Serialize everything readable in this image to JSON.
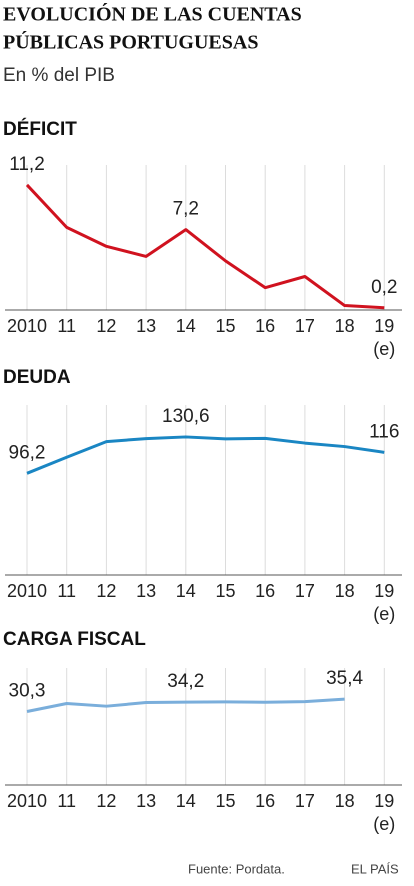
{
  "title": [
    "EVOLUCIÓN DE LAS CUENTAS",
    "PÚBLICAS PORTUGUESAS"
  ],
  "subtitle": "En % del PIB",
  "source": "Fuente: Pordata.",
  "credit": "EL PAÍS",
  "chart_data": [
    {
      "type": "line",
      "title": "DÉFICIT",
      "categories": [
        "2010",
        "11",
        "12",
        "13",
        "14",
        "15",
        "16",
        "17",
        "18",
        "19"
      ],
      "annotation": "(e)",
      "series": [
        {
          "name": "Déficit",
          "color": "#d0121f",
          "values": [
            11.2,
            7.4,
            5.7,
            4.8,
            7.2,
            4.4,
            2.0,
            3.0,
            0.4,
            0.2
          ],
          "value_labels": [
            "11,2",
            null,
            null,
            null,
            "7,2",
            null,
            null,
            null,
            null,
            "0,2"
          ]
        }
      ],
      "ylim": [
        0,
        12
      ]
    },
    {
      "type": "line",
      "title": "DEUDA",
      "categories": [
        "2010",
        "11",
        "12",
        "13",
        "14",
        "15",
        "16",
        "17",
        "18",
        "19"
      ],
      "annotation": "(e)",
      "series": [
        {
          "name": "Deuda",
          "color": "#1a86c3",
          "values": [
            96.2,
            111.4,
            126.2,
            129.0,
            130.6,
            128.8,
            129.2,
            124.8,
            121.5,
            116
          ],
          "value_labels": [
            "96,2",
            null,
            null,
            null,
            "130,6",
            null,
            null,
            null,
            null,
            "116"
          ]
        }
      ],
      "ylim": [
        0,
        140
      ]
    },
    {
      "type": "line",
      "title": "CARGA FISCAL",
      "categories": [
        "2010",
        "11",
        "12",
        "13",
        "14",
        "15",
        "16",
        "17",
        "18",
        "19"
      ],
      "annotation": "(e)",
      "series": [
        {
          "name": "Carga fiscal",
          "color": "#7aaedb",
          "values": [
            30.3,
            33.6,
            32.5,
            34.0,
            34.2,
            34.3,
            34.1,
            34.4,
            35.4,
            null
          ],
          "value_labels": [
            "30,3",
            null,
            null,
            null,
            "34,2",
            null,
            null,
            null,
            "35,4",
            null
          ]
        }
      ],
      "ylim": [
        0,
        40
      ]
    }
  ]
}
